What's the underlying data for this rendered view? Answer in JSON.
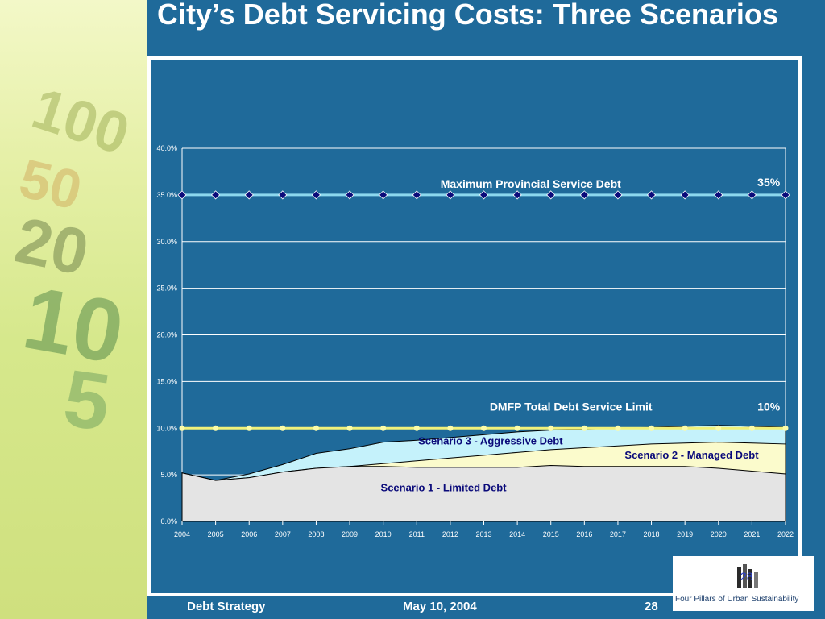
{
  "slide": {
    "title": "City’s Debt Servicing Costs: Three Scenarios",
    "footer_left": "Debt Strategy",
    "footer_center": "May 10, 2004",
    "footer_page": "28",
    "logo_text": "Four Pillars of Urban Sustainability",
    "logo_badge": "28"
  },
  "chart_data": {
    "type": "area",
    "x": [
      2004,
      2005,
      2006,
      2007,
      2008,
      2009,
      2010,
      2011,
      2012,
      2013,
      2014,
      2015,
      2016,
      2017,
      2018,
      2019,
      2020,
      2021,
      2022
    ],
    "ylim": [
      0,
      40
    ],
    "yticks": [
      "0.0%",
      "5.0%",
      "10.0%",
      "15.0%",
      "20.0%",
      "25.0%",
      "30.0%",
      "35.0%",
      "40.0%"
    ],
    "grid": true,
    "series": [
      {
        "name": "Scenario 1 - Limited Debt",
        "color": "#e4e4e4",
        "values": [
          5.2,
          4.4,
          4.7,
          5.3,
          5.7,
          5.9,
          5.9,
          5.8,
          5.8,
          5.8,
          5.8,
          6.0,
          5.9,
          5.9,
          5.9,
          5.9,
          5.7,
          5.4,
          5.1
        ]
      },
      {
        "name": "Scenario 2 - Managed Debt",
        "color": "#fbfbcc",
        "values": [
          5.2,
          4.4,
          4.7,
          5.3,
          5.7,
          5.9,
          6.2,
          6.5,
          6.8,
          7.1,
          7.4,
          7.7,
          7.9,
          8.1,
          8.3,
          8.4,
          8.5,
          8.4,
          8.3
        ]
      },
      {
        "name": "Scenario 3 - Aggressive Debt",
        "color": "#c5f2fb",
        "values": [
          5.2,
          4.4,
          5.1,
          6.1,
          7.3,
          7.8,
          8.5,
          8.7,
          9.0,
          9.3,
          9.6,
          9.8,
          9.9,
          10.0,
          10.1,
          10.2,
          10.3,
          10.2,
          10.1
        ]
      },
      {
        "name": "Maximum Provincial Service Debt Limit",
        "color": "#8cd8ee",
        "marker_color": "#0a0a7a",
        "values": [
          35,
          35,
          35,
          35,
          35,
          35,
          35,
          35,
          35,
          35,
          35,
          35,
          35,
          35,
          35,
          35,
          35,
          35,
          35
        ],
        "end_label": "35%"
      },
      {
        "name": "DMFP Total Debt Service Limit",
        "color": "#f1f17a",
        "marker_color": "#fbfba8",
        "values": [
          10,
          10,
          10,
          10,
          10,
          10,
          10,
          10,
          10,
          10,
          10,
          10,
          10,
          10,
          10,
          10,
          10,
          10,
          10
        ],
        "end_label": "10%"
      }
    ]
  }
}
